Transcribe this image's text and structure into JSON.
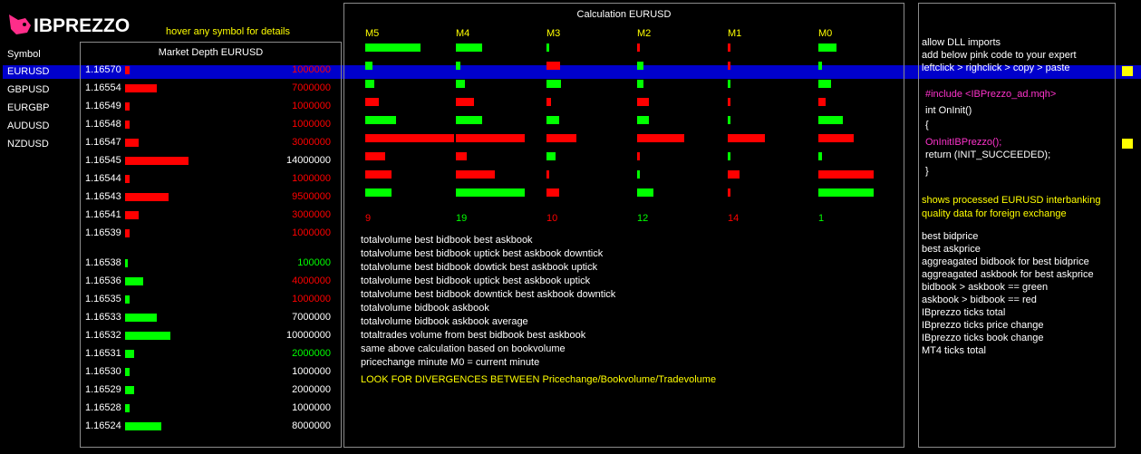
{
  "colors": {
    "green": "#00ff00",
    "red": "#ff0000",
    "yellow": "#ffff00",
    "pink": "#ff33cc",
    "select": "#0000cc"
  },
  "logo": {
    "text": "IBPREZZO",
    "icon": "rabbit-logo-icon"
  },
  "hover_hint": "hover any symbol for details",
  "symbols": {
    "header": "Symbol",
    "items": [
      "EURUSD",
      "GBPUSD",
      "EURGBP",
      "AUDUSD",
      "NZDUSD"
    ],
    "selected": "EURUSD"
  },
  "market_depth": {
    "title": "Market Depth EURUSD",
    "asks": [
      {
        "price": "1.16570",
        "volume": "1000000",
        "bar_value": 1000000,
        "vol_color": "red"
      },
      {
        "price": "1.16554",
        "volume": "7000000",
        "bar_value": 7000000,
        "vol_color": "red"
      },
      {
        "price": "1.16549",
        "volume": "1000000",
        "bar_value": 1000000,
        "vol_color": "red"
      },
      {
        "price": "1.16548",
        "volume": "1000000",
        "bar_value": 1000000,
        "vol_color": "red"
      },
      {
        "price": "1.16547",
        "volume": "3000000",
        "bar_value": 3000000,
        "vol_color": "red"
      },
      {
        "price": "1.16545",
        "volume": "14000000",
        "bar_value": 14000000,
        "vol_color": "white"
      },
      {
        "price": "1.16544",
        "volume": "1000000",
        "bar_value": 1000000,
        "vol_color": "red"
      },
      {
        "price": "1.16543",
        "volume": "9500000",
        "bar_value": 9500000,
        "vol_color": "red"
      },
      {
        "price": "1.16541",
        "volume": "3000000",
        "bar_value": 3000000,
        "vol_color": "red"
      },
      {
        "price": "1.16539",
        "volume": "1000000",
        "bar_value": 1000000,
        "vol_color": "red"
      }
    ],
    "bids": [
      {
        "price": "1.16538",
        "volume": "100000",
        "bar_value": 100000,
        "vol_color": "green"
      },
      {
        "price": "1.16536",
        "volume": "4000000",
        "bar_value": 4000000,
        "vol_color": "red"
      },
      {
        "price": "1.16535",
        "volume": "1000000",
        "bar_value": 1000000,
        "vol_color": "red"
      },
      {
        "price": "1.16533",
        "volume": "7000000",
        "bar_value": 7000000,
        "vol_color": "white"
      },
      {
        "price": "1.16532",
        "volume": "10000000",
        "bar_value": 10000000,
        "vol_color": "white"
      },
      {
        "price": "1.16531",
        "volume": "2000000",
        "bar_value": 2000000,
        "vol_color": "green"
      },
      {
        "price": "1.16530",
        "volume": "1000000",
        "bar_value": 1000000,
        "vol_color": "white"
      },
      {
        "price": "1.16529",
        "volume": "2000000",
        "bar_value": 2000000,
        "vol_color": "white"
      },
      {
        "price": "1.16528",
        "volume": "1000000",
        "bar_value": 1000000,
        "vol_color": "white"
      },
      {
        "price": "1.16524",
        "volume": "8000000",
        "bar_value": 8000000,
        "vol_color": "white"
      }
    ]
  },
  "calculation": {
    "title": "Calculation EURUSD",
    "columns": [
      {
        "label": "M5",
        "label_color": "yellow",
        "count": "9",
        "count_color": "red",
        "bars": [
          {
            "v": 0.62,
            "c": "green"
          },
          {
            "v": 0.08,
            "c": "green"
          },
          {
            "v": 0.1,
            "c": "green"
          },
          {
            "v": 0.15,
            "c": "red"
          },
          {
            "v": 0.35,
            "c": "green"
          },
          {
            "v": 1.0,
            "c": "red"
          },
          {
            "v": 0.22,
            "c": "red"
          },
          {
            "v": 0.3,
            "c": "red"
          },
          {
            "v": 0.3,
            "c": "green"
          }
        ]
      },
      {
        "label": "M4",
        "label_color": "yellow",
        "count": "19",
        "count_color": "green",
        "bars": [
          {
            "v": 0.3,
            "c": "green"
          },
          {
            "v": 0.05,
            "c": "green"
          },
          {
            "v": 0.1,
            "c": "green"
          },
          {
            "v": 0.2,
            "c": "red"
          },
          {
            "v": 0.3,
            "c": "green"
          },
          {
            "v": 0.78,
            "c": "red"
          },
          {
            "v": 0.12,
            "c": "red"
          },
          {
            "v": 0.44,
            "c": "red"
          },
          {
            "v": 0.78,
            "c": "green"
          }
        ]
      },
      {
        "label": "M3",
        "label_color": "yellow",
        "count": "10",
        "count_color": "red",
        "bars": [
          {
            "v": 0.03,
            "c": "green"
          },
          {
            "v": 0.15,
            "c": "red"
          },
          {
            "v": 0.16,
            "c": "green"
          },
          {
            "v": 0.05,
            "c": "red"
          },
          {
            "v": 0.14,
            "c": "green"
          },
          {
            "v": 0.34,
            "c": "red"
          },
          {
            "v": 0.1,
            "c": "green"
          },
          {
            "v": 0.03,
            "c": "red"
          },
          {
            "v": 0.14,
            "c": "red"
          }
        ]
      },
      {
        "label": "M2",
        "label_color": "yellow",
        "count": "12",
        "count_color": "green",
        "bars": [
          {
            "v": 0.03,
            "c": "red"
          },
          {
            "v": 0.07,
            "c": "green"
          },
          {
            "v": 0.07,
            "c": "green"
          },
          {
            "v": 0.13,
            "c": "red"
          },
          {
            "v": 0.13,
            "c": "green"
          },
          {
            "v": 0.53,
            "c": "red"
          },
          {
            "v": 0.03,
            "c": "red"
          },
          {
            "v": 0.03,
            "c": "green"
          },
          {
            "v": 0.18,
            "c": "green"
          }
        ]
      },
      {
        "label": "M1",
        "label_color": "yellow",
        "count": "14",
        "count_color": "red",
        "bars": [
          {
            "v": 0.03,
            "c": "red"
          },
          {
            "v": 0.03,
            "c": "red"
          },
          {
            "v": 0.03,
            "c": "green"
          },
          {
            "v": 0.03,
            "c": "red"
          },
          {
            "v": 0.03,
            "c": "green"
          },
          {
            "v": 0.42,
            "c": "red"
          },
          {
            "v": 0.03,
            "c": "green"
          },
          {
            "v": 0.13,
            "c": "red"
          },
          {
            "v": 0.03,
            "c": "red"
          }
        ]
      },
      {
        "label": "M0",
        "label_color": "yellow",
        "count": "1",
        "count_color": "green",
        "bars": [
          {
            "v": 0.2,
            "c": "green"
          },
          {
            "v": 0.04,
            "c": "green"
          },
          {
            "v": 0.14,
            "c": "green"
          },
          {
            "v": 0.08,
            "c": "red"
          },
          {
            "v": 0.28,
            "c": "green"
          },
          {
            "v": 0.4,
            "c": "red"
          },
          {
            "v": 0.04,
            "c": "green"
          },
          {
            "v": 0.62,
            "c": "red"
          },
          {
            "v": 0.62,
            "c": "green"
          }
        ]
      }
    ],
    "descriptions": [
      "totalvolume best bidbook best askbook",
      "totalvolume best bidbook uptick best askbook downtick",
      "totalvolume best bidbook dowtick best askbook uptick",
      "totalvolume best bidbook uptick best askbook uptick",
      "totalvolume best bidbook downtick best askbook downtick",
      "totalvolume bidbook askbook",
      "totalvolume bidbook askbook average",
      "totaltrades volume from best bidbook best askbook",
      "same above calculation based on bookvolume",
      "pricechange minute M0 = current minute"
    ],
    "divergence_note": "LOOK FOR DIVERGENCES BETWEEN Pricechange/Bookvolume/Tradevolume"
  },
  "instructions": {
    "lines": [
      "allow DLL imports",
      "add below pink code to your expert",
      "leftclick > righclick > copy > paste"
    ],
    "code": {
      "include": "#include <IBPrezzo_ad.mqh>",
      "init": "int OnInit()",
      "open_brace": "{",
      "call": "OnInitIBPrezzo();",
      "ret": "return (INIT_SUCCEEDED);",
      "close_brace": "}"
    },
    "note_line1": "shows processed  EURUSD  interbanking",
    "note_line2": "quality data for foreign exchange",
    "legend": [
      "best bidprice",
      "best askprice",
      "aggreagated bidbook for best bidprice",
      "aggreagated askbook for best askprice",
      "bidbook > askbook == green",
      "askbook > bidbook == red",
      "IBprezzo ticks total",
      "IBprezzo ticks price change",
      "IBprezzo ticks book change",
      "MT4 ticks total"
    ]
  }
}
